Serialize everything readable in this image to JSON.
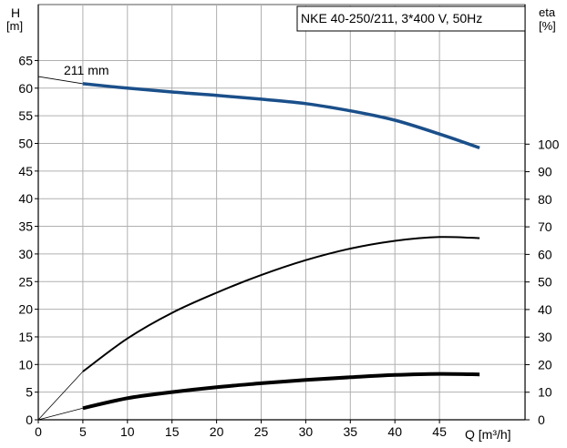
{
  "chart_data": {
    "type": "line",
    "title": "NKE 40-250/211, 3*400 V, 50Hz",
    "x_axis": {
      "label": "Q [m³/h]",
      "range": [
        0,
        50
      ],
      "ticks": [
        0,
        5,
        10,
        15,
        20,
        25,
        30,
        35,
        40,
        45
      ]
    },
    "y_axis_left": {
      "label_line1": "H",
      "label_line2": "[m]",
      "range": [
        0,
        70
      ],
      "ticks": [
        0,
        5,
        10,
        15,
        20,
        25,
        30,
        35,
        40,
        45,
        50,
        55,
        60,
        65
      ]
    },
    "y_axis_right": {
      "label_line1": "eta",
      "label_line2": "[%]",
      "range": [
        0,
        100
      ],
      "ticks": [
        0,
        10,
        20,
        30,
        40,
        50,
        60,
        70,
        80,
        90,
        100
      ]
    },
    "grid": true,
    "annotations": [
      {
        "text": "211 mm",
        "x": 3.3,
        "y": 62.1
      }
    ],
    "series": [
      {
        "axis": "left",
        "color": "#1a4f8a",
        "width": 3.5,
        "x": [
          5,
          10,
          15,
          20,
          25,
          30,
          35,
          40,
          45,
          49.5
        ],
        "y": [
          60.8,
          60.0,
          59.3,
          58.7,
          58.0,
          57.2,
          55.9,
          54.2,
          51.7,
          49.2
        ]
      },
      {
        "axis": "right",
        "color": "#000000",
        "width": 2,
        "x": [
          5,
          10,
          15,
          20,
          25,
          30,
          35,
          40,
          45,
          49.5
        ],
        "y": [
          17.5,
          29.5,
          38.8,
          46.1,
          52.5,
          57.9,
          62.1,
          64.9,
          66.3,
          65.9
        ]
      },
      {
        "axis": "left",
        "color": "#000000",
        "width": 4,
        "x": [
          5,
          10,
          15,
          20,
          25,
          30,
          35,
          40,
          45,
          49.5
        ],
        "y": [
          2.1,
          3.9,
          5.0,
          5.9,
          6.6,
          7.2,
          7.7,
          8.1,
          8.3,
          8.2
        ]
      }
    ],
    "extrapolations": [
      {
        "axis": "left",
        "x": [
          0,
          5
        ],
        "y": [
          62.1,
          60.8
        ]
      },
      {
        "axis": "right",
        "x": [
          0,
          5
        ],
        "y": [
          0,
          17.5
        ]
      },
      {
        "axis": "left",
        "x": [
          0,
          5
        ],
        "y": [
          0,
          2.1
        ]
      }
    ]
  }
}
